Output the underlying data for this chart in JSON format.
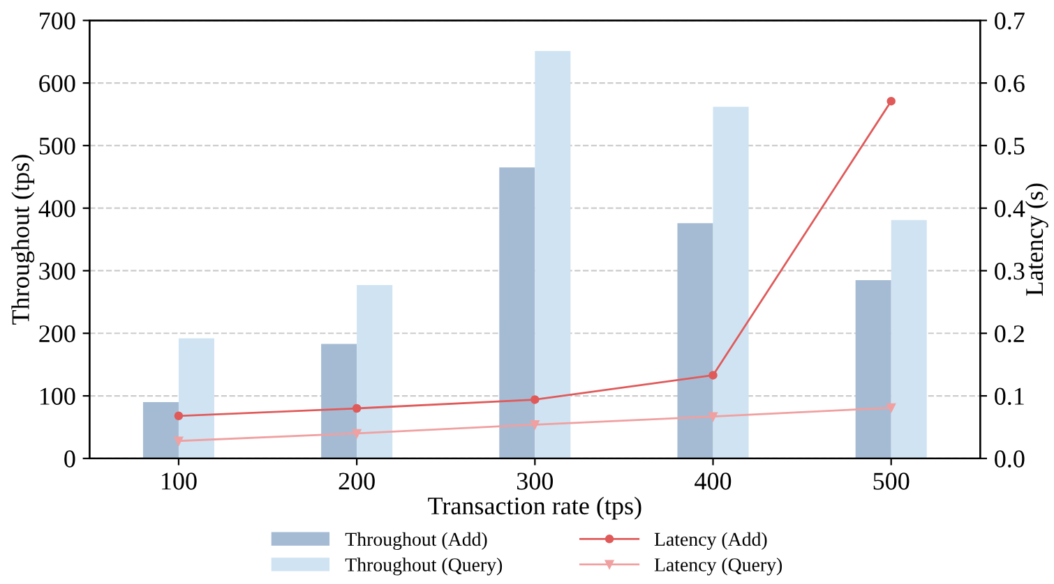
{
  "chart_data": {
    "type": "bar",
    "xlabel": "Transaction rate (tps)",
    "ylabel": "Throughout (tps)",
    "y2label": "Latency (s)",
    "categories": [
      "100",
      "200",
      "300",
      "400",
      "500"
    ],
    "series": [
      {
        "name": "Throughout (Add)",
        "color": "#a5bbd3",
        "values": [
          90,
          183,
          465,
          376,
          285
        ]
      },
      {
        "name": "Throughout (Query)",
        "color": "#cfe3f2",
        "values": [
          192,
          277,
          651,
          562,
          381
        ]
      },
      {
        "name": "Latency (Add)",
        "type": "line",
        "axis": "y2",
        "marker": "circle",
        "color": "#e05a5a",
        "values": [
          0.068,
          0.08,
          0.094,
          0.133,
          0.571
        ]
      },
      {
        "name": "Latency (Query)",
        "type": "line",
        "axis": "y2",
        "marker": "triangle",
        "color": "#f0a0a0",
        "values": [
          0.028,
          0.04,
          0.054,
          0.067,
          0.081
        ]
      }
    ],
    "ylim": [
      0,
      700
    ],
    "yticks": [
      0,
      100,
      200,
      300,
      400,
      500,
      600,
      700
    ],
    "y2lim": [
      0,
      0.7
    ],
    "y2ticks": [
      {
        "value": 0,
        "label": "0.0"
      },
      0.1,
      0.2,
      0.3,
      0.4,
      0.5,
      0.6,
      0.7
    ],
    "grid": "y",
    "legend": "bottom",
    "line_style": "solid"
  }
}
